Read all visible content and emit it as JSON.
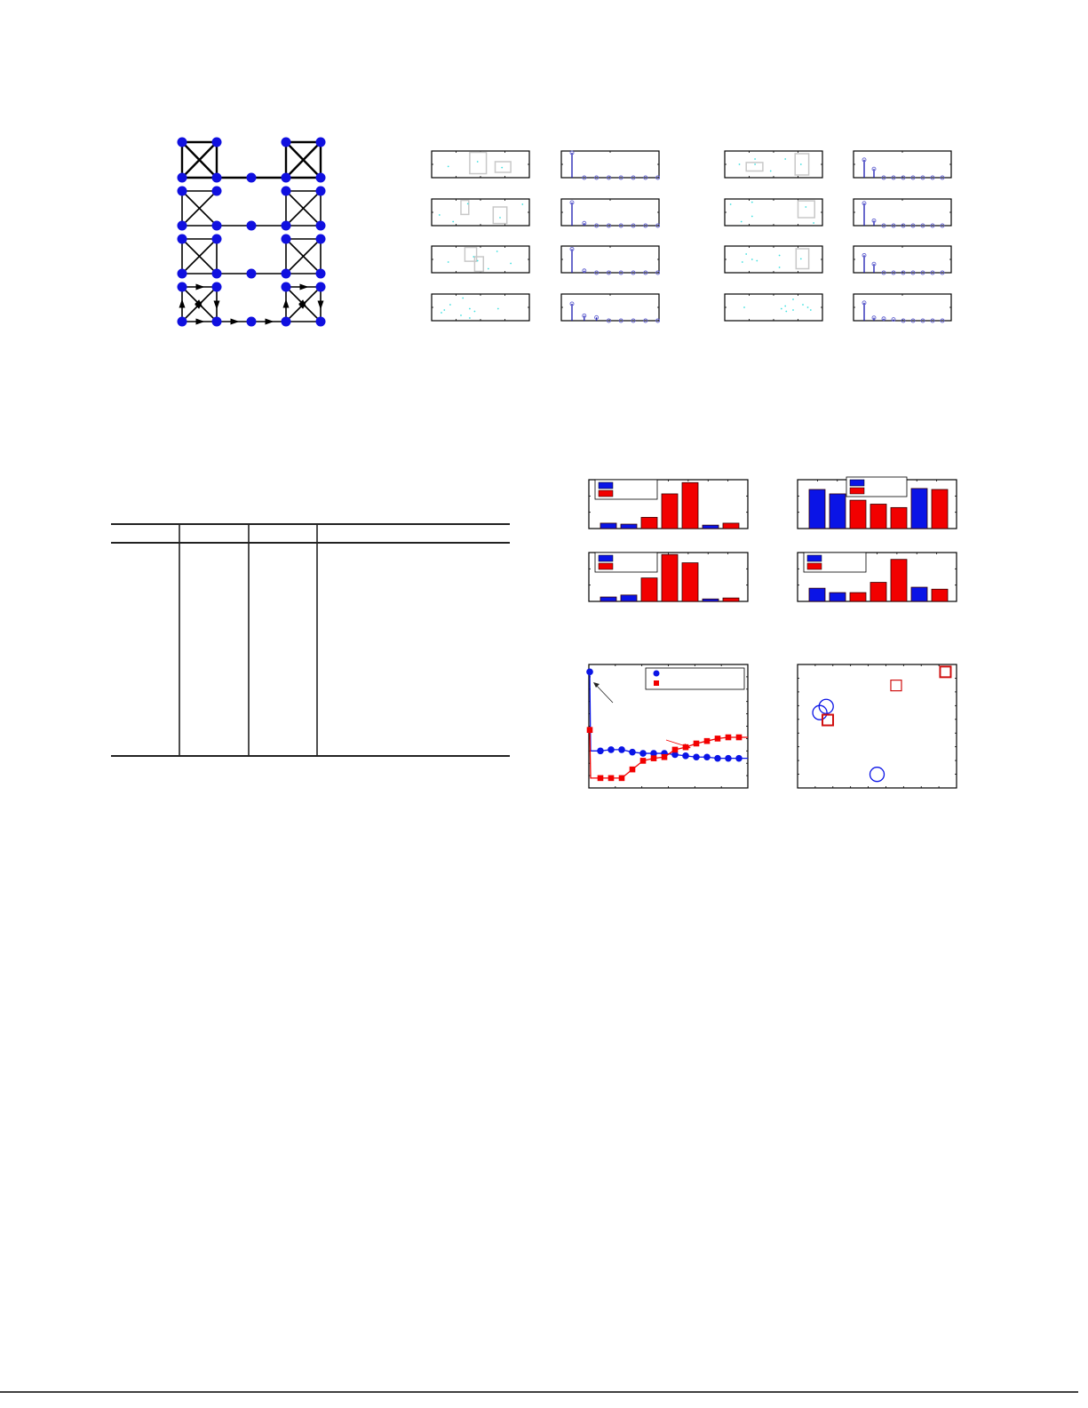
{
  "colors": {
    "node": "#1010e0",
    "blue": "#0a14e6",
    "red": "#f20000",
    "cyan": "#40e0e0",
    "box": "#c8c8c8",
    "stem": "#1a1ab0",
    "stem_marker": "#6060d0"
  },
  "graph_figure": {
    "panels": 4,
    "edges_left": [
      [
        [
          0,
          1
        ],
        [
          0,
          2
        ],
        [
          1,
          3
        ],
        [
          2,
          3
        ],
        [
          0,
          3
        ],
        [
          1,
          2
        ]
      ],
      [
        [
          0,
          1
        ],
        [
          0,
          2
        ],
        [
          2,
          3
        ],
        [
          0,
          3
        ],
        [
          1,
          2
        ]
      ],
      [
        [
          0,
          1
        ],
        [
          0,
          2
        ],
        [
          1,
          3
        ],
        [
          2,
          3
        ],
        [
          0,
          3
        ],
        [
          1,
          2
        ]
      ],
      [
        [
          0,
          1
        ],
        [
          0,
          2
        ],
        [
          1,
          3
        ],
        [
          2,
          3
        ],
        [
          0,
          3
        ],
        [
          1,
          2
        ]
      ]
    ],
    "directed_last_panel": true
  },
  "chart_data": [
    {
      "type": "scatter",
      "group": "left",
      "panels": [
        {
          "points": [
            [
              0.17,
              0.42
            ],
            [
              0.47,
              0.6
            ],
            [
              0.72,
              0.38
            ]
          ],
          "boxes": [
            [
              0.39,
              0.95,
              0.56,
              0.15
            ],
            [
              0.65,
              0.6,
              0.81,
              0.2
            ]
          ]
        },
        {
          "points": [
            [
              0.08,
              0.4
            ],
            [
              0.22,
              0.15
            ],
            [
              0.37,
              0.82
            ],
            [
              0.7,
              0.3
            ],
            [
              0.93,
              0.8
            ]
          ],
          "boxes": [
            [
              0.3,
              0.95,
              0.38,
              0.42
            ],
            [
              0.63,
              0.7,
              0.77,
              0.08
            ]
          ]
        },
        {
          "points": [
            [
              0.17,
              0.4
            ],
            [
              0.43,
              0.6
            ],
            [
              0.47,
              0.45
            ],
            [
              0.58,
              0.15
            ],
            [
              0.67,
              0.8
            ],
            [
              0.81,
              0.35
            ]
          ],
          "boxes": [
            [
              0.34,
              0.95,
              0.46,
              0.43
            ],
            [
              0.44,
              0.6,
              0.53,
              0.05
            ]
          ]
        },
        {
          "points": [
            [
              0.1,
              0.3
            ],
            [
              0.13,
              0.4
            ],
            [
              0.19,
              0.6
            ],
            [
              0.32,
              0.85
            ],
            [
              0.3,
              0.2
            ],
            [
              0.39,
              0.45
            ],
            [
              0.44,
              0.35
            ],
            [
              0.39,
              0.1
            ],
            [
              0.68,
              0.45
            ]
          ],
          "boxes": []
        }
      ]
    },
    {
      "type": "stem",
      "group": "left",
      "panels": [
        [
          1.0,
          0,
          0,
          0,
          0,
          0,
          0,
          0
        ],
        [
          0.93,
          0.1,
          0,
          0,
          0,
          0,
          0,
          0
        ],
        [
          0.95,
          0.08,
          0,
          0,
          0,
          0,
          0,
          0
        ],
        [
          0.68,
          0.2,
          0.13,
          0,
          0,
          0,
          0,
          0
        ]
      ]
    },
    {
      "type": "scatter",
      "group": "right",
      "panels": [
        {
          "points": [
            [
              0.15,
              0.5
            ],
            [
              0.31,
              0.7
            ],
            [
              0.31,
              0.5
            ],
            [
              0.47,
              0.25
            ],
            [
              0.62,
              0.7
            ],
            [
              0.78,
              0.5
            ]
          ],
          "boxes": [
            [
              0.22,
              0.57,
              0.39,
              0.25
            ],
            [
              0.72,
              0.9,
              0.86,
              0.1
            ]
          ]
        },
        {
          "points": [
            [
              0.06,
              0.8
            ],
            [
              0.28,
              0.88
            ],
            [
              0.28,
              0.35
            ],
            [
              0.17,
              0.15
            ],
            [
              0.83,
              0.7
            ],
            [
              0.91,
              0.1
            ]
          ],
          "boxes": [
            [
              0.75,
              0.93,
              0.92,
              0.3
            ]
          ]
        },
        {
          "points": [
            [
              0.22,
              0.7
            ],
            [
              0.18,
              0.4
            ],
            [
              0.28,
              0.5
            ],
            [
              0.33,
              0.45
            ],
            [
              0.56,
              0.65
            ],
            [
              0.56,
              0.2
            ],
            [
              0.78,
              0.52
            ]
          ],
          "boxes": [
            [
              0.73,
              0.9,
              0.86,
              0.15
            ]
          ]
        },
        {
          "points": [
            [
              0.2,
              0.5
            ],
            [
              0.58,
              0.45
            ],
            [
              0.62,
              0.55
            ],
            [
              0.7,
              0.8
            ],
            [
              0.63,
              0.35
            ],
            [
              0.7,
              0.4
            ],
            [
              0.8,
              0.6
            ],
            [
              0.85,
              0.5
            ],
            [
              0.88,
              0.4
            ]
          ],
          "boxes": []
        }
      ]
    },
    {
      "type": "stem",
      "group": "right",
      "panels": [
        [
          0.72,
          0.35,
          0,
          0,
          0,
          0,
          0,
          0,
          0
        ],
        [
          0.9,
          0.2,
          0,
          0,
          0,
          0,
          0,
          0,
          0
        ],
        [
          0.7,
          0.35,
          0,
          0,
          0,
          0,
          0,
          0,
          0
        ],
        [
          0.72,
          0.12,
          0.08,
          0.05,
          0,
          0,
          0,
          0,
          0
        ]
      ]
    },
    {
      "type": "bar",
      "legend": "top-left",
      "series_colors": [
        "blue",
        "blue",
        "red",
        "red",
        "red",
        "blue",
        "red"
      ],
      "values": [
        0.11,
        0.09,
        0.23,
        0.71,
        0.94,
        0.07,
        0.11
      ],
      "ylim": [
        0,
        1
      ]
    },
    {
      "type": "bar",
      "legend": "top-center",
      "series_colors": [
        "blue",
        "blue",
        "red",
        "red",
        "red",
        "blue",
        "red"
      ],
      "values": [
        0.8,
        0.71,
        0.58,
        0.5,
        0.43,
        0.82,
        0.8
      ],
      "ylim": [
        0,
        1
      ]
    },
    {
      "type": "bar",
      "legend": "top-left",
      "series_colors": [
        "blue",
        "blue",
        "red",
        "red",
        "red",
        "blue",
        "red"
      ],
      "values": [
        0.09,
        0.13,
        0.48,
        0.96,
        0.79,
        0.05,
        0.07
      ],
      "ylim": [
        0,
        1
      ]
    },
    {
      "type": "bar",
      "legend": "top-left",
      "series_colors": [
        "blue",
        "blue",
        "red",
        "red",
        "red",
        "blue",
        "red"
      ],
      "values": [
        0.27,
        0.18,
        0.18,
        0.39,
        0.86,
        0.29,
        0.25
      ],
      "ylim": [
        0,
        1
      ]
    },
    {
      "type": "line",
      "legend": "top-right",
      "x": [
        0,
        1,
        2,
        3,
        4,
        5,
        6,
        7,
        8,
        9,
        10,
        11,
        12,
        13,
        14
      ],
      "series": [
        {
          "color": "blue",
          "marker": "circle",
          "values": [
            0.94,
            0.3,
            0.31,
            0.31,
            0.29,
            0.28,
            0.28,
            0.28,
            0.27,
            0.26,
            0.25,
            0.25,
            0.24,
            0.24,
            0.24
          ]
        },
        {
          "color": "red",
          "marker": "square",
          "values": [
            0.47,
            0.08,
            0.08,
            0.08,
            0.15,
            0.22,
            0.24,
            0.25,
            0.31,
            0.33,
            0.36,
            0.38,
            0.4,
            0.41,
            0.41
          ]
        }
      ],
      "ylim": [
        0,
        1
      ],
      "xlim": [
        0,
        15
      ]
    },
    {
      "type": "scatter",
      "circles": [
        [
          0.14,
          0.61
        ],
        [
          0.18,
          0.66
        ],
        [
          0.5,
          0.11
        ]
      ],
      "squares": [
        [
          0.19,
          0.55
        ],
        [
          0.62,
          0.83
        ],
        [
          0.93,
          0.94
        ]
      ],
      "xlim": [
        0,
        1
      ],
      "ylim": [
        0,
        1
      ]
    }
  ],
  "table": {
    "columns": 4,
    "rows": 0
  }
}
